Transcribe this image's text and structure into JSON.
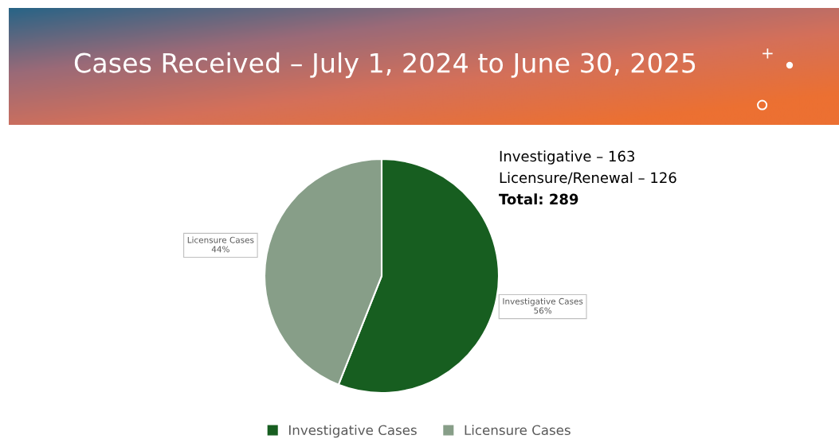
{
  "chart_data": {
    "type": "pie",
    "title": "Cases Received – July 1, 2024 to June 30, 2025",
    "categories": [
      "Investigative Cases",
      "Licensure Cases"
    ],
    "values": [
      56,
      44
    ],
    "value_labels": [
      "56%",
      "44%"
    ],
    "colors": [
      "#175e20",
      "#879e88"
    ],
    "legend": "bottom",
    "annotations": [
      "Investigative – 163",
      "Licensure/Renewal – 126",
      "Total: 289"
    ]
  }
}
